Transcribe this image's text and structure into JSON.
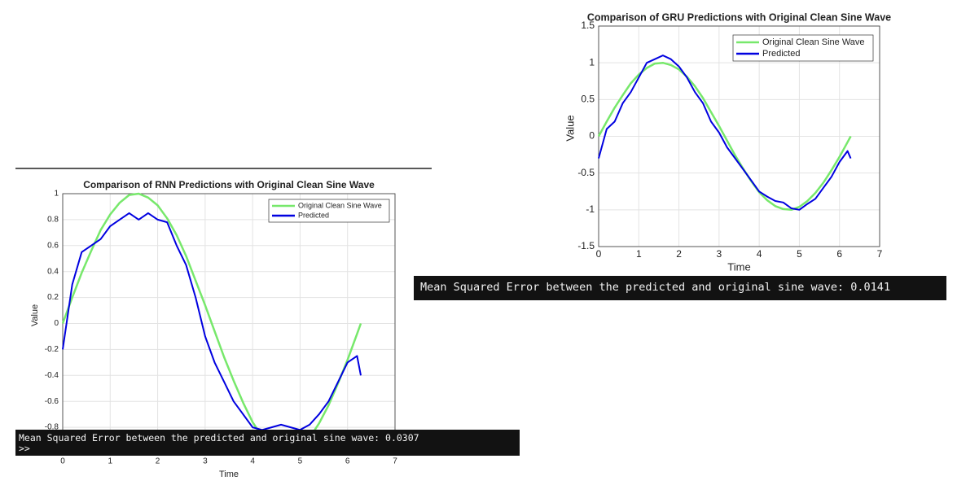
{
  "chart_data": [
    {
      "type": "line",
      "title": "Comparison of RNN Predictions with Original Clean Sine Wave",
      "xlabel": "Time",
      "ylabel": "Value",
      "x": [
        0,
        0.2,
        0.4,
        0.6,
        0.8,
        1.0,
        1.2,
        1.4,
        1.6,
        1.8,
        2.0,
        2.2,
        2.4,
        2.6,
        2.8,
        3.0,
        3.2,
        3.4,
        3.6,
        3.8,
        4.0,
        4.2,
        4.4,
        4.6,
        4.8,
        5.0,
        5.2,
        5.4,
        5.6,
        5.8,
        6.0,
        6.2,
        6.28
      ],
      "series": [
        {
          "name": "Original Clean Sine Wave",
          "color": "#77e86b",
          "values": [
            0,
            0.2,
            0.39,
            0.56,
            0.72,
            0.84,
            0.93,
            0.99,
            1.0,
            0.97,
            0.91,
            0.81,
            0.68,
            0.52,
            0.33,
            0.14,
            -0.06,
            -0.26,
            -0.44,
            -0.61,
            -0.76,
            -0.87,
            -0.95,
            -0.99,
            -1.0,
            -0.96,
            -0.88,
            -0.77,
            -0.63,
            -0.46,
            -0.28,
            -0.08,
            0
          ]
        },
        {
          "name": "Predicted",
          "color": "#0000e0",
          "values": [
            -0.2,
            0.3,
            0.55,
            0.6,
            0.65,
            0.75,
            0.8,
            0.85,
            0.8,
            0.85,
            0.8,
            0.78,
            0.6,
            0.45,
            0.2,
            -0.1,
            -0.3,
            -0.45,
            -0.6,
            -0.7,
            -0.8,
            -0.82,
            -0.8,
            -0.78,
            -0.8,
            -0.82,
            -0.78,
            -0.7,
            -0.6,
            -0.45,
            -0.3,
            -0.25,
            -0.4
          ]
        }
      ],
      "xlim": [
        0,
        7
      ],
      "ylim": [
        -1,
        1
      ],
      "xticks": [
        0,
        1,
        2,
        3,
        4,
        5,
        6,
        7
      ],
      "yticks": [
        -0.8,
        -0.6,
        -0.4,
        -0.2,
        0,
        0.2,
        0.4,
        0.6,
        0.8,
        1
      ],
      "grid": true
    },
    {
      "type": "line",
      "title": "Comparison of GRU Predictions with Original Clean Sine Wave",
      "xlabel": "Time",
      "ylabel": "Value",
      "x": [
        0,
        0.2,
        0.4,
        0.6,
        0.8,
        1.0,
        1.2,
        1.4,
        1.6,
        1.8,
        2.0,
        2.2,
        2.4,
        2.6,
        2.8,
        3.0,
        3.2,
        3.4,
        3.6,
        3.8,
        4.0,
        4.2,
        4.4,
        4.6,
        4.8,
        5.0,
        5.2,
        5.4,
        5.6,
        5.8,
        6.0,
        6.2,
        6.28
      ],
      "series": [
        {
          "name": "Original Clean Sine Wave",
          "color": "#77e86b",
          "values": [
            0,
            0.2,
            0.39,
            0.56,
            0.72,
            0.84,
            0.93,
            0.99,
            1.0,
            0.97,
            0.91,
            0.81,
            0.68,
            0.52,
            0.33,
            0.14,
            -0.06,
            -0.26,
            -0.44,
            -0.61,
            -0.76,
            -0.87,
            -0.95,
            -0.99,
            -1.0,
            -0.96,
            -0.88,
            -0.77,
            -0.63,
            -0.46,
            -0.28,
            -0.08,
            0
          ]
        },
        {
          "name": "Predicted",
          "color": "#0000e0",
          "values": [
            -0.3,
            0.1,
            0.2,
            0.45,
            0.6,
            0.8,
            1.0,
            1.05,
            1.1,
            1.05,
            0.95,
            0.8,
            0.6,
            0.45,
            0.2,
            0.05,
            -0.15,
            -0.3,
            -0.45,
            -0.6,
            -0.75,
            -0.82,
            -0.88,
            -0.9,
            -0.98,
            -1.0,
            -0.92,
            -0.85,
            -0.7,
            -0.55,
            -0.35,
            -0.2,
            -0.3
          ]
        }
      ],
      "xlim": [
        0,
        7
      ],
      "ylim": [
        -1.5,
        1.5
      ],
      "xticks": [
        0,
        1,
        2,
        3,
        4,
        5,
        6,
        7
      ],
      "yticks": [
        -1.5,
        -1,
        -0.5,
        0,
        0.5,
        1,
        1.5
      ],
      "grid": true
    }
  ],
  "terminals": [
    {
      "lines": [
        "Mean Squared Error between the predicted and original sine wave: 0.0307",
        ">>"
      ]
    },
    {
      "lines": [
        "Mean Squared Error between the predicted and original sine wave: 0.0141"
      ]
    }
  ]
}
